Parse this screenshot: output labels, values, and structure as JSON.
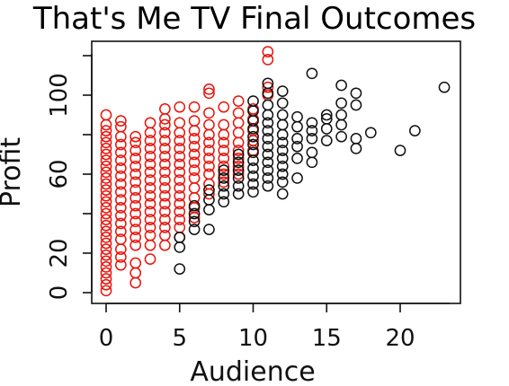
{
  "chart_data": {
    "type": "scatter",
    "title": "That's Me TV Final Outcomes",
    "xlabel": "Audience",
    "ylabel": "Profit",
    "xlim": [
      -0.5,
      24
    ],
    "ylim": [
      -2,
      123
    ],
    "xticks": [
      0,
      5,
      10,
      15,
      20
    ],
    "yticks": [
      0,
      20,
      60,
      100
    ],
    "yminor_ticks": [
      40,
      80,
      120
    ],
    "grid": false,
    "marker": "open-circle",
    "series": [
      {
        "color": "#e8150c",
        "points": [
          [
            0,
            1
          ],
          [
            0,
            4
          ],
          [
            0,
            7
          ],
          [
            0,
            10
          ],
          [
            0,
            13
          ],
          [
            0,
            16
          ],
          [
            0,
            19
          ],
          [
            0,
            22
          ],
          [
            0,
            25
          ],
          [
            0,
            28
          ],
          [
            0,
            31
          ],
          [
            0,
            34
          ],
          [
            0,
            37
          ],
          [
            0,
            40
          ],
          [
            0,
            43
          ],
          [
            0,
            46
          ],
          [
            0,
            49
          ],
          [
            0,
            52
          ],
          [
            0,
            55
          ],
          [
            0,
            58
          ],
          [
            0,
            61
          ],
          [
            0,
            64
          ],
          [
            0,
            67
          ],
          [
            0,
            70
          ],
          [
            0,
            73
          ],
          [
            0,
            76
          ],
          [
            0,
            79
          ],
          [
            0,
            82
          ],
          [
            0,
            85
          ],
          [
            0,
            90
          ],
          [
            1,
            14
          ],
          [
            1,
            18
          ],
          [
            1,
            22
          ],
          [
            1,
            27
          ],
          [
            1,
            31
          ],
          [
            1,
            35
          ],
          [
            1,
            39
          ],
          [
            1,
            43
          ],
          [
            1,
            47
          ],
          [
            1,
            51
          ],
          [
            1,
            55
          ],
          [
            1,
            59
          ],
          [
            1,
            63
          ],
          [
            1,
            67
          ],
          [
            1,
            71
          ],
          [
            1,
            75
          ],
          [
            1,
            79
          ],
          [
            1,
            84
          ],
          [
            1,
            87
          ],
          [
            2,
            5
          ],
          [
            2,
            10
          ],
          [
            2,
            15
          ],
          [
            2,
            24
          ],
          [
            2,
            28
          ],
          [
            2,
            32
          ],
          [
            2,
            36
          ],
          [
            2,
            40
          ],
          [
            2,
            44
          ],
          [
            2,
            48
          ],
          [
            2,
            52
          ],
          [
            2,
            56
          ],
          [
            2,
            60
          ],
          [
            2,
            64
          ],
          [
            2,
            68
          ],
          [
            2,
            72
          ],
          [
            2,
            76
          ],
          [
            2,
            79
          ],
          [
            3,
            17
          ],
          [
            3,
            24
          ],
          [
            3,
            29
          ],
          [
            3,
            33
          ],
          [
            3,
            37
          ],
          [
            3,
            41
          ],
          [
            3,
            45
          ],
          [
            3,
            49
          ],
          [
            3,
            53
          ],
          [
            3,
            57
          ],
          [
            3,
            61
          ],
          [
            3,
            65
          ],
          [
            3,
            69
          ],
          [
            3,
            73
          ],
          [
            3,
            77
          ],
          [
            3,
            81
          ],
          [
            3,
            86
          ],
          [
            4,
            24
          ],
          [
            4,
            29
          ],
          [
            4,
            33
          ],
          [
            4,
            37
          ],
          [
            4,
            41
          ],
          [
            4,
            45
          ],
          [
            4,
            49
          ],
          [
            4,
            53
          ],
          [
            4,
            57
          ],
          [
            4,
            61
          ],
          [
            4,
            65
          ],
          [
            4,
            69
          ],
          [
            4,
            73
          ],
          [
            4,
            77
          ],
          [
            4,
            81
          ],
          [
            4,
            85
          ],
          [
            4,
            88
          ],
          [
            4,
            93
          ],
          [
            5,
            28
          ],
          [
            5,
            33
          ],
          [
            5,
            37
          ],
          [
            5,
            41
          ],
          [
            5,
            45
          ],
          [
            5,
            49
          ],
          [
            5,
            53
          ],
          [
            5,
            57
          ],
          [
            5,
            61
          ],
          [
            5,
            65
          ],
          [
            5,
            69
          ],
          [
            5,
            73
          ],
          [
            5,
            77
          ],
          [
            5,
            81
          ],
          [
            5,
            86
          ],
          [
            5,
            94
          ],
          [
            6,
            38
          ],
          [
            6,
            43
          ],
          [
            6,
            48
          ],
          [
            6,
            53
          ],
          [
            6,
            58
          ],
          [
            6,
            62
          ],
          [
            6,
            66
          ],
          [
            6,
            70
          ],
          [
            6,
            74
          ],
          [
            6,
            78
          ],
          [
            6,
            82
          ],
          [
            6,
            87
          ],
          [
            6,
            94
          ],
          [
            7,
            50
          ],
          [
            7,
            55
          ],
          [
            7,
            60
          ],
          [
            7,
            64
          ],
          [
            7,
            68
          ],
          [
            7,
            72
          ],
          [
            7,
            76
          ],
          [
            7,
            80
          ],
          [
            7,
            85
          ],
          [
            7,
            91
          ],
          [
            7,
            101
          ],
          [
            7,
            103
          ],
          [
            8,
            56
          ],
          [
            8,
            60
          ],
          [
            8,
            64
          ],
          [
            8,
            68
          ],
          [
            8,
            72
          ],
          [
            8,
            76
          ],
          [
            8,
            80
          ],
          [
            8,
            85
          ],
          [
            8,
            94
          ],
          [
            9,
            60
          ],
          [
            9,
            64
          ],
          [
            9,
            68
          ],
          [
            9,
            72
          ],
          [
            9,
            76
          ],
          [
            9,
            81
          ],
          [
            9,
            86
          ],
          [
            9,
            91
          ],
          [
            9,
            97
          ],
          [
            10,
            72
          ],
          [
            10,
            77
          ],
          [
            10,
            82
          ],
          [
            10,
            88
          ],
          [
            10,
            93
          ],
          [
            11,
            100
          ],
          [
            11,
            104
          ],
          [
            11,
            118
          ],
          [
            11,
            122
          ]
        ]
      },
      {
        "color": "#111111",
        "points": [
          [
            5,
            12
          ],
          [
            5,
            23
          ],
          [
            5,
            28
          ],
          [
            6,
            32
          ],
          [
            6,
            36
          ],
          [
            6,
            40
          ],
          [
            6,
            44
          ],
          [
            7,
            32
          ],
          [
            7,
            42
          ],
          [
            7,
            47
          ],
          [
            7,
            52
          ],
          [
            8,
            46
          ],
          [
            8,
            50
          ],
          [
            8,
            54
          ],
          [
            8,
            58
          ],
          [
            8,
            62
          ],
          [
            9,
            50
          ],
          [
            9,
            54
          ],
          [
            9,
            58
          ],
          [
            9,
            62
          ],
          [
            9,
            66
          ],
          [
            9,
            70
          ],
          [
            10,
            51
          ],
          [
            10,
            55
          ],
          [
            10,
            59
          ],
          [
            10,
            63
          ],
          [
            10,
            67
          ],
          [
            10,
            71
          ],
          [
            10,
            75
          ],
          [
            10,
            79
          ],
          [
            10,
            83
          ],
          [
            10,
            87
          ],
          [
            10,
            92
          ],
          [
            10,
            97
          ],
          [
            11,
            54
          ],
          [
            11,
            58
          ],
          [
            11,
            62
          ],
          [
            11,
            66
          ],
          [
            11,
            70
          ],
          [
            11,
            74
          ],
          [
            11,
            78
          ],
          [
            11,
            82
          ],
          [
            11,
            86
          ],
          [
            11,
            90
          ],
          [
            11,
            95
          ],
          [
            11,
            101
          ],
          [
            11,
            106
          ],
          [
            12,
            50
          ],
          [
            12,
            56
          ],
          [
            12,
            60
          ],
          [
            12,
            64
          ],
          [
            12,
            68
          ],
          [
            12,
            72
          ],
          [
            12,
            76
          ],
          [
            12,
            80
          ],
          [
            12,
            85
          ],
          [
            12,
            90
          ],
          [
            12,
            96
          ],
          [
            12,
            102
          ],
          [
            13,
            58
          ],
          [
            13,
            68
          ],
          [
            13,
            74
          ],
          [
            13,
            78
          ],
          [
            13,
            84
          ],
          [
            13,
            89
          ],
          [
            14,
            66
          ],
          [
            14,
            71
          ],
          [
            14,
            78
          ],
          [
            14,
            82
          ],
          [
            14,
            86
          ],
          [
            14,
            111
          ],
          [
            15,
            77
          ],
          [
            15,
            83
          ],
          [
            15,
            88
          ],
          [
            15,
            90
          ],
          [
            16,
            79
          ],
          [
            16,
            85
          ],
          [
            16,
            90
          ],
          [
            16,
            96
          ],
          [
            16,
            105
          ],
          [
            17,
            73
          ],
          [
            17,
            78
          ],
          [
            17,
            95
          ],
          [
            17,
            101
          ],
          [
            18,
            81
          ],
          [
            20,
            72
          ],
          [
            21,
            82
          ],
          [
            23,
            104
          ]
        ]
      }
    ]
  }
}
